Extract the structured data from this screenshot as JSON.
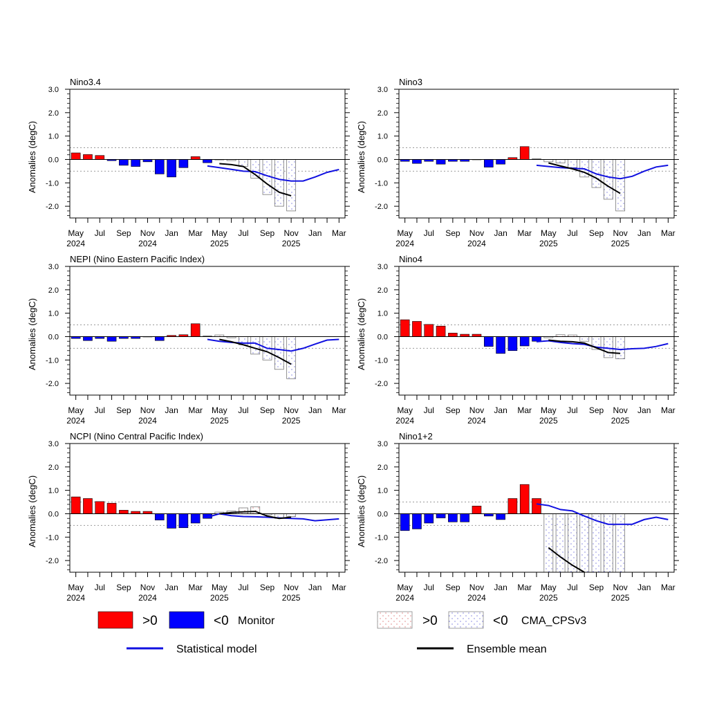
{
  "colors": {
    "positive": "#ff0000",
    "negative": "#0000ff",
    "statistical": "#1010e0",
    "ensemble": "#000000",
    "forecast_dot_pos": "#d04040",
    "forecast_dot_neg": "#4040d0"
  },
  "common": {
    "ylabel": "Anomalies (degC)",
    "ytick_labels": [
      "3.0",
      "2.0",
      "1.0",
      "0.0",
      "-1.0",
      "-2.0"
    ],
    "x_labels": [
      {
        "month": "May",
        "year": "2024"
      },
      {
        "month": "Jul",
        "year": ""
      },
      {
        "month": "Sep",
        "year": ""
      },
      {
        "month": "Nov",
        "year": "2024"
      },
      {
        "month": "Jan",
        "year": ""
      },
      {
        "month": "Mar",
        "year": ""
      },
      {
        "month": "May",
        "year": "2025"
      },
      {
        "month": "Jul",
        "year": ""
      },
      {
        "month": "Sep",
        "year": ""
      },
      {
        "month": "Nov",
        "year": "2025"
      },
      {
        "month": "Jan",
        "year": ""
      },
      {
        "month": "Mar",
        "year": ""
      }
    ]
  },
  "legend": {
    "monitor_pos": ">0",
    "monitor_neg": "<0",
    "monitor_label": "Monitor",
    "model_pos": ">0",
    "model_neg": "<0",
    "model_label": "CMA_CPSv3",
    "statistical_label": "Statistical model",
    "ensemble_label": "Ensemble mean"
  },
  "chart_data": [
    {
      "type": "bar",
      "title": "Nino3.4",
      "ylim": [
        -2.5,
        3.0
      ],
      "thresholds": [
        0.5,
        -0.5
      ],
      "monitor": [
        0.28,
        0.21,
        0.17,
        -0.05,
        -0.25,
        -0.3,
        -0.1,
        -0.62,
        -0.75,
        -0.35,
        0.12,
        -0.14
      ],
      "model": [
        -0.02,
        -0.05,
        -0.3,
        -0.8,
        -1.5,
        -2.0,
        -2.2
      ],
      "statistical": [
        -0.28,
        -0.35,
        -0.42,
        -0.5,
        -0.52,
        -0.7,
        -0.85,
        -0.92,
        -0.92,
        -0.75,
        -0.55,
        -0.43
      ],
      "ensemble": [
        -0.18,
        -0.22,
        -0.3,
        -0.65,
        -1.05,
        -1.4,
        -1.55
      ]
    },
    {
      "type": "bar",
      "title": "Nino3",
      "ylim": [
        -2.5,
        3.0
      ],
      "thresholds": [
        0.5,
        -0.5
      ],
      "monitor": [
        -0.08,
        -0.17,
        -0.08,
        -0.2,
        -0.08,
        -0.08,
        0.0,
        -0.33,
        -0.2,
        0.08,
        0.55,
        0.02
      ],
      "model": [
        -0.1,
        -0.15,
        -0.35,
        -0.75,
        -1.2,
        -1.7,
        -2.2
      ],
      "statistical": [
        -0.25,
        -0.3,
        -0.35,
        -0.38,
        -0.4,
        -0.62,
        -0.75,
        -0.82,
        -0.72,
        -0.5,
        -0.32,
        -0.25
      ],
      "ensemble": [
        -0.15,
        -0.28,
        -0.4,
        -0.55,
        -0.8,
        -1.15,
        -1.45
      ]
    },
    {
      "type": "bar",
      "title": "NEPI (Nino Eastern Pacific Index)",
      "ylim": [
        -2.5,
        3.0
      ],
      "thresholds": [
        0.5,
        -0.5
      ],
      "monitor": [
        -0.08,
        -0.17,
        -0.08,
        -0.2,
        -0.08,
        -0.08,
        0.0,
        -0.17,
        0.05,
        0.08,
        0.55,
        0.02
      ],
      "model": [
        0.07,
        -0.05,
        -0.35,
        -0.75,
        -1.0,
        -1.4,
        -1.8
      ],
      "statistical": [
        -0.12,
        -0.2,
        -0.25,
        -0.28,
        -0.28,
        -0.5,
        -0.55,
        -0.62,
        -0.5,
        -0.32,
        -0.15,
        -0.12
      ],
      "ensemble": [
        -0.12,
        -0.22,
        -0.35,
        -0.5,
        -0.65,
        -0.9,
        -1.18
      ]
    },
    {
      "type": "bar",
      "title": "Nino4",
      "ylim": [
        -2.5,
        3.0
      ],
      "thresholds": [
        0.5,
        -0.5
      ],
      "monitor": [
        0.72,
        0.65,
        0.52,
        0.45,
        0.15,
        0.1,
        0.1,
        -0.42,
        -0.72,
        -0.6,
        -0.4,
        -0.2
      ],
      "model": [
        -0.05,
        0.08,
        0.07,
        -0.2,
        -0.55,
        -0.9,
        -0.95
      ],
      "statistical": [
        -0.22,
        -0.18,
        -0.25,
        -0.3,
        -0.33,
        -0.45,
        -0.5,
        -0.55,
        -0.52,
        -0.5,
        -0.42,
        -0.3
      ],
      "ensemble": [
        -0.15,
        -0.2,
        -0.22,
        -0.28,
        -0.48,
        -0.68,
        -0.72
      ]
    },
    {
      "type": "bar",
      "title": "NCPI (Nino Central Pacific Index)",
      "ylim": [
        -2.5,
        3.0
      ],
      "thresholds": [
        0.5,
        -0.5
      ],
      "monitor": [
        0.72,
        0.65,
        0.52,
        0.45,
        0.15,
        0.1,
        0.1,
        -0.27,
        -0.62,
        -0.6,
        -0.4,
        -0.2
      ],
      "model": [
        0.07,
        0.12,
        0.25,
        0.3,
        -0.05,
        -0.2,
        -0.12
      ],
      "statistical": [
        -0.15,
        0.0,
        -0.08,
        -0.12,
        -0.13,
        -0.15,
        -0.18,
        -0.2,
        -0.22,
        -0.3,
        -0.26,
        -0.22
      ],
      "ensemble": [
        0.0,
        0.05,
        0.08,
        0.1,
        -0.1,
        -0.2,
        -0.15
      ]
    },
    {
      "type": "bar",
      "title": "Nino1+2",
      "ylim": [
        -2.5,
        3.0
      ],
      "thresholds": [
        0.5,
        -0.5
      ],
      "monitor": [
        -0.72,
        -0.65,
        -0.4,
        -0.18,
        -0.35,
        -0.35,
        0.33,
        -0.1,
        -0.25,
        0.65,
        1.25,
        0.65
      ],
      "model": [
        -2.6,
        -2.6,
        -2.6,
        -2.6,
        -2.6,
        -2.6,
        -2.6
      ],
      "statistical": [
        0.42,
        0.35,
        0.18,
        0.12,
        -0.1,
        -0.3,
        -0.45,
        -0.45,
        -0.45,
        -0.25,
        -0.15,
        -0.25
      ],
      "ensemble": [
        -1.45,
        -1.85,
        -2.2,
        -2.5,
        null,
        null,
        null
      ]
    }
  ]
}
